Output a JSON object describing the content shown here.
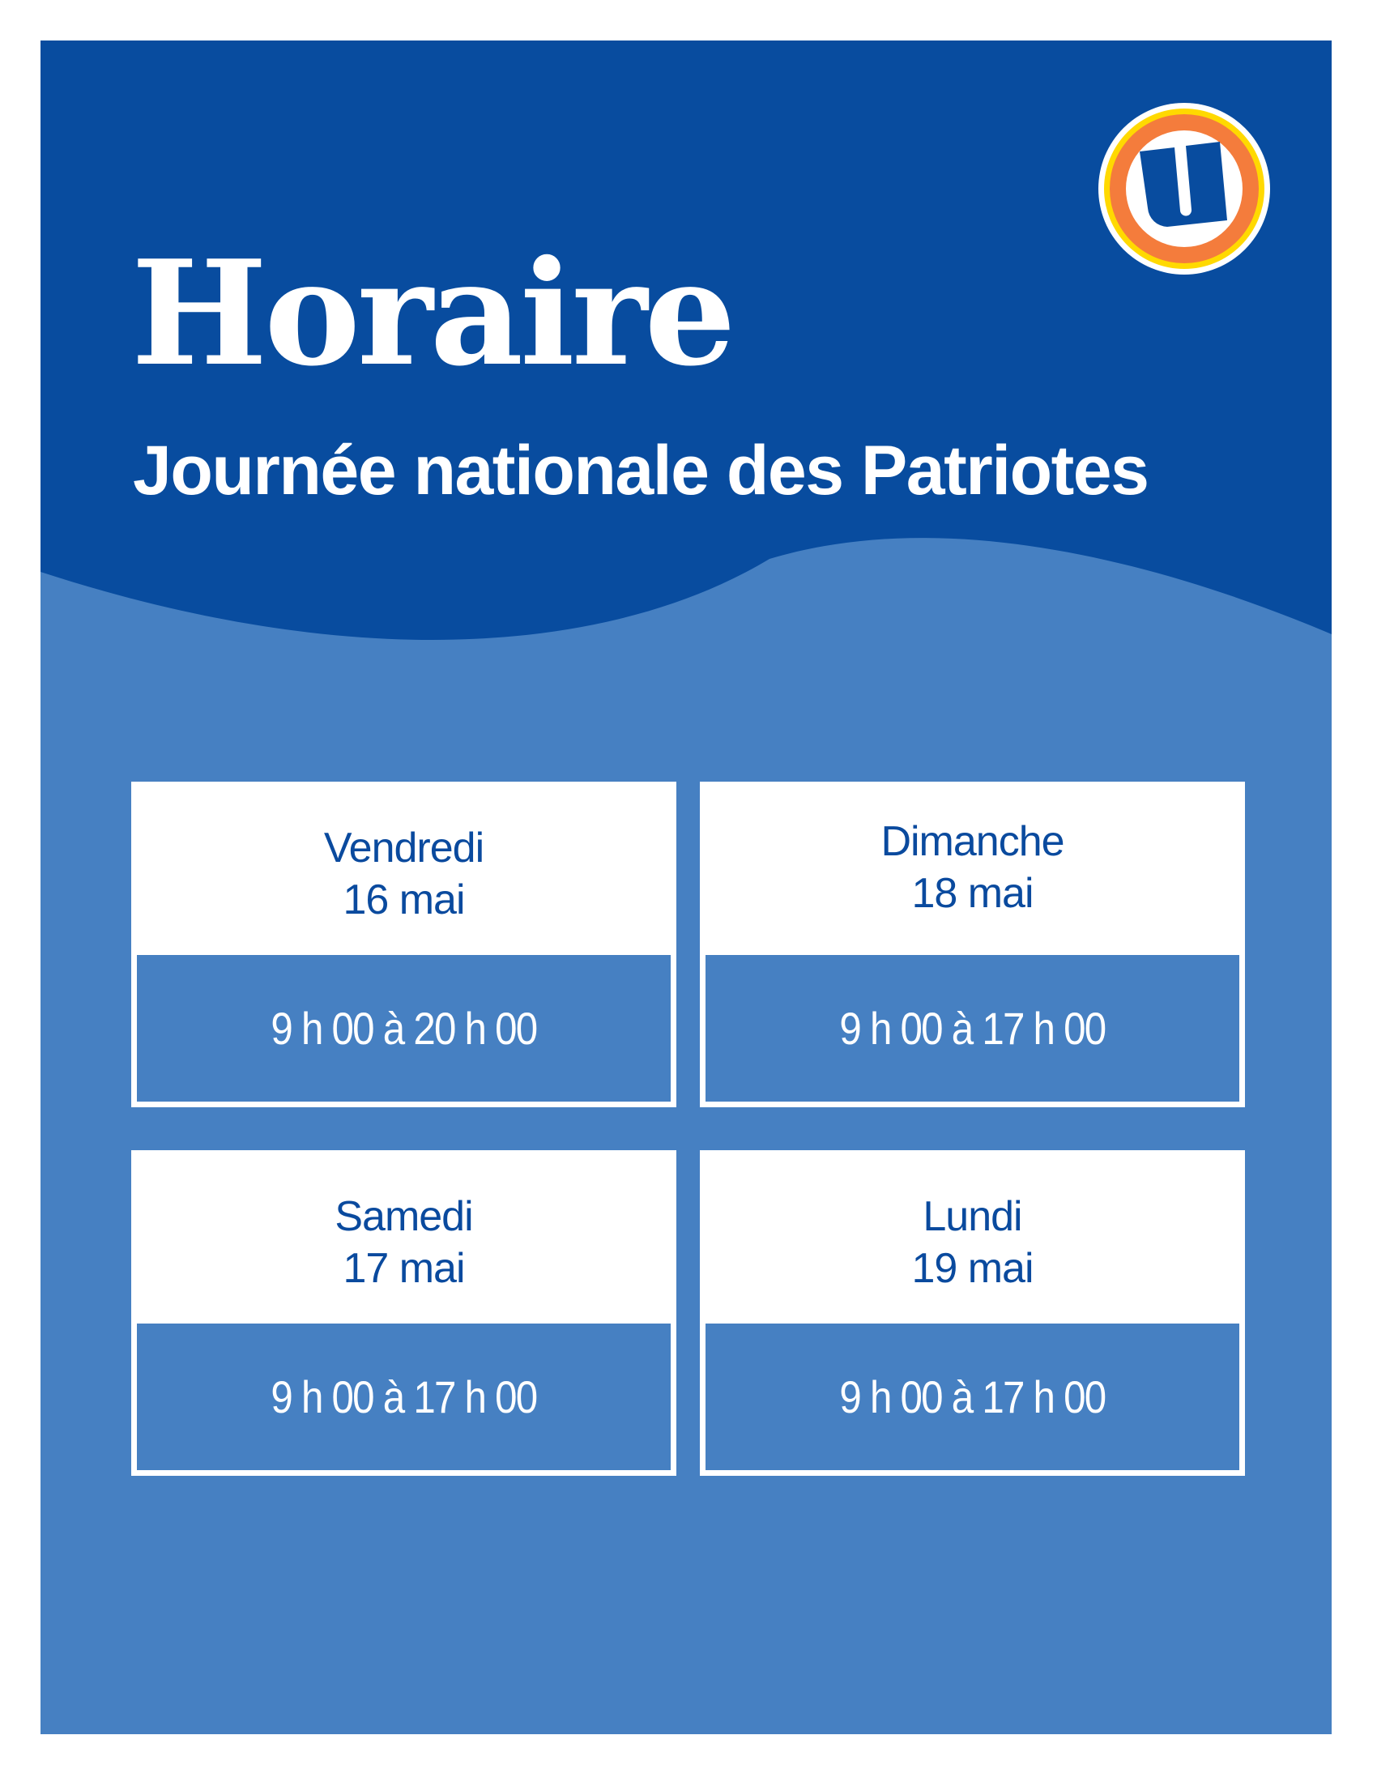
{
  "header": {
    "title": "Horaire",
    "subtitle": "Journée nationale des Patriotes",
    "logo_letter": "U"
  },
  "colors": {
    "dark_blue": "#084C9F",
    "light_blue": "#4680C2",
    "logo_orange": "#F47C3C",
    "logo_yellow": "#FFD900",
    "text_blue": "#0A4A9E"
  },
  "schedule": [
    {
      "day": "Vendredi",
      "date": "16 mai",
      "hours": "9 h 00 à 20 h 00"
    },
    {
      "day": "Dimanche",
      "date": "18 mai",
      "hours": "9 h 00 à 17 h 00"
    },
    {
      "day": "Samedi",
      "date": "17 mai",
      "hours": "9 h 00 à 17 h 00"
    },
    {
      "day": "Lundi",
      "date": "19 mai",
      "hours": "9 h 00 à 17 h 00"
    }
  ]
}
